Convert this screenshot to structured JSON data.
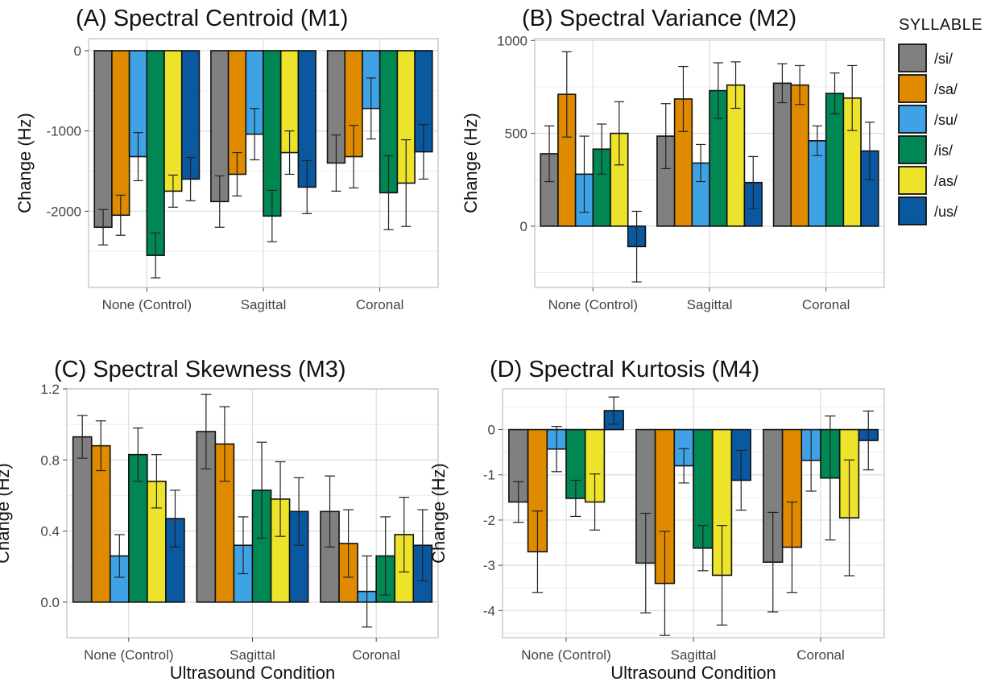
{
  "chart_data": [
    {
      "type": "bar",
      "title": "(A) Spectral Centroid (M1)",
      "xlabel": "",
      "ylabel": "Change (Hz)",
      "ylim": [
        -2950,
        150
      ],
      "yticks": [
        0,
        -1000,
        -2000
      ],
      "yticklabels": [
        "0",
        "-1000",
        "-2000"
      ],
      "grid": true,
      "categories": [
        "None (Control)",
        "Sagittal",
        "Coronal"
      ],
      "series": [
        {
          "name": "/si/",
          "color": "#808080",
          "values": [
            -2200,
            -1880,
            -1400
          ],
          "err": [
            220,
            320,
            350
          ]
        },
        {
          "name": "/sa/",
          "color": "#E08A00",
          "values": [
            -2050,
            -1540,
            -1320
          ],
          "err": [
            250,
            270,
            390
          ]
        },
        {
          "name": "/su/",
          "color": "#3EA2E5",
          "values": [
            -1320,
            -1040,
            -720
          ],
          "err": [
            300,
            320,
            380
          ]
        },
        {
          "name": "/is/",
          "color": "#008754",
          "values": [
            -2550,
            -2060,
            -1770
          ],
          "err": [
            280,
            320,
            460
          ]
        },
        {
          "name": "/as/",
          "color": "#EDE32A",
          "values": [
            -1750,
            -1270,
            -1650
          ],
          "err": [
            200,
            270,
            540
          ]
        },
        {
          "name": "/us/",
          "color": "#0A58A0",
          "values": [
            -1600,
            -1700,
            -1260
          ],
          "err": [
            270,
            330,
            340
          ]
        }
      ]
    },
    {
      "type": "bar",
      "title": "(B) Spectral Variance (M2)",
      "xlabel": "",
      "ylabel": "Change (Hz)",
      "ylim": [
        -330,
        1010
      ],
      "yticks": [
        0,
        500,
        1000
      ],
      "yticklabels": [
        "0",
        "500",
        "1000"
      ],
      "grid": true,
      "categories": [
        "None (Control)",
        "Sagittal",
        "Coronal"
      ],
      "series": [
        {
          "name": "/si/",
          "color": "#808080",
          "values": [
            390,
            485,
            770
          ],
          "err": [
            150,
            175,
            105
          ]
        },
        {
          "name": "/sa/",
          "color": "#E08A00",
          "values": [
            710,
            685,
            760
          ],
          "err": [
            230,
            175,
            105
          ]
        },
        {
          "name": "/su/",
          "color": "#3EA2E5",
          "values": [
            280,
            340,
            460
          ],
          "err": [
            205,
            100,
            80
          ]
        },
        {
          "name": "/is/",
          "color": "#008754",
          "values": [
            415,
            730,
            715
          ],
          "err": [
            135,
            150,
            110
          ]
        },
        {
          "name": "/as/",
          "color": "#EDE32A",
          "values": [
            500,
            760,
            690
          ],
          "err": [
            170,
            125,
            175
          ]
        },
        {
          "name": "/us/",
          "color": "#0A58A0",
          "values": [
            -110,
            235,
            405
          ],
          "err": [
            190,
            140,
            155
          ]
        }
      ]
    },
    {
      "type": "bar",
      "title": "(C) Spectral Skewness (M3)",
      "xlabel": "Ultrasound Condition",
      "ylabel": "Change (Hz)",
      "ylim": [
        -0.2,
        1.2
      ],
      "yticks": [
        0.0,
        0.4,
        0.8,
        1.2
      ],
      "yticklabels": [
        "0.0",
        "0.4",
        "0.8",
        "1.2"
      ],
      "grid": true,
      "categories": [
        "None (Control)",
        "Sagittal",
        "Coronal"
      ],
      "series": [
        {
          "name": "/si/",
          "color": "#808080",
          "values": [
            0.93,
            0.96,
            0.51
          ],
          "err": [
            0.12,
            0.21,
            0.2
          ]
        },
        {
          "name": "/sa/",
          "color": "#E08A00",
          "values": [
            0.88,
            0.89,
            0.33
          ],
          "err": [
            0.14,
            0.21,
            0.19
          ]
        },
        {
          "name": "/su/",
          "color": "#3EA2E5",
          "values": [
            0.26,
            0.32,
            0.06
          ],
          "err": [
            0.12,
            0.16,
            0.2
          ]
        },
        {
          "name": "/is/",
          "color": "#008754",
          "values": [
            0.83,
            0.63,
            0.26
          ],
          "err": [
            0.15,
            0.27,
            0.22
          ]
        },
        {
          "name": "/as/",
          "color": "#EDE32A",
          "values": [
            0.68,
            0.58,
            0.38
          ],
          "err": [
            0.15,
            0.21,
            0.21
          ]
        },
        {
          "name": "/us/",
          "color": "#0A58A0",
          "values": [
            0.47,
            0.51,
            0.32
          ],
          "err": [
            0.16,
            0.19,
            0.2
          ]
        }
      ]
    },
    {
      "type": "bar",
      "title": "(D) Spectral Kurtosis (M4)",
      "xlabel": "Ultrasound Condition",
      "ylabel": "Change (Hz)",
      "ylim": [
        -4.6,
        0.9
      ],
      "yticks": [
        0,
        -1,
        -2,
        -3,
        -4
      ],
      "yticklabels": [
        "0",
        "-1",
        "-2",
        "-3",
        "-4"
      ],
      "grid": true,
      "categories": [
        "None (Control)",
        "Sagittal",
        "Coronal"
      ],
      "series": [
        {
          "name": "/si/",
          "color": "#808080",
          "values": [
            -1.6,
            -2.95,
            -2.93
          ],
          "err": [
            0.45,
            1.1,
            1.1
          ]
        },
        {
          "name": "/sa/",
          "color": "#E08A00",
          "values": [
            -2.7,
            -3.4,
            -2.6
          ],
          "err": [
            0.9,
            1.15,
            1.0
          ]
        },
        {
          "name": "/su/",
          "color": "#3EA2E5",
          "values": [
            -0.43,
            -0.8,
            -0.68
          ],
          "err": [
            0.5,
            0.38,
            0.68
          ]
        },
        {
          "name": "/is/",
          "color": "#008754",
          "values": [
            -1.52,
            -2.62,
            -1.07
          ],
          "err": [
            0.4,
            0.5,
            1.37
          ]
        },
        {
          "name": "/as/",
          "color": "#EDE32A",
          "values": [
            -1.6,
            -3.22,
            -1.95
          ],
          "err": [
            0.62,
            1.1,
            1.28
          ]
        },
        {
          "name": "/us/",
          "color": "#0A58A0",
          "values": [
            0.42,
            -1.12,
            -0.24
          ],
          "err": [
            0.3,
            0.66,
            0.65
          ]
        }
      ]
    }
  ],
  "legend": {
    "title": "SYLLABLE",
    "placement": "right",
    "items": [
      {
        "label": "/si/",
        "color": "#808080"
      },
      {
        "label": "/sa/",
        "color": "#E08A00"
      },
      {
        "label": "/su/",
        "color": "#3EA2E5"
      },
      {
        "label": "/is/",
        "color": "#008754"
      },
      {
        "label": "/as/",
        "color": "#EDE32A"
      },
      {
        "label": "/us/",
        "color": "#0A58A0"
      }
    ]
  }
}
